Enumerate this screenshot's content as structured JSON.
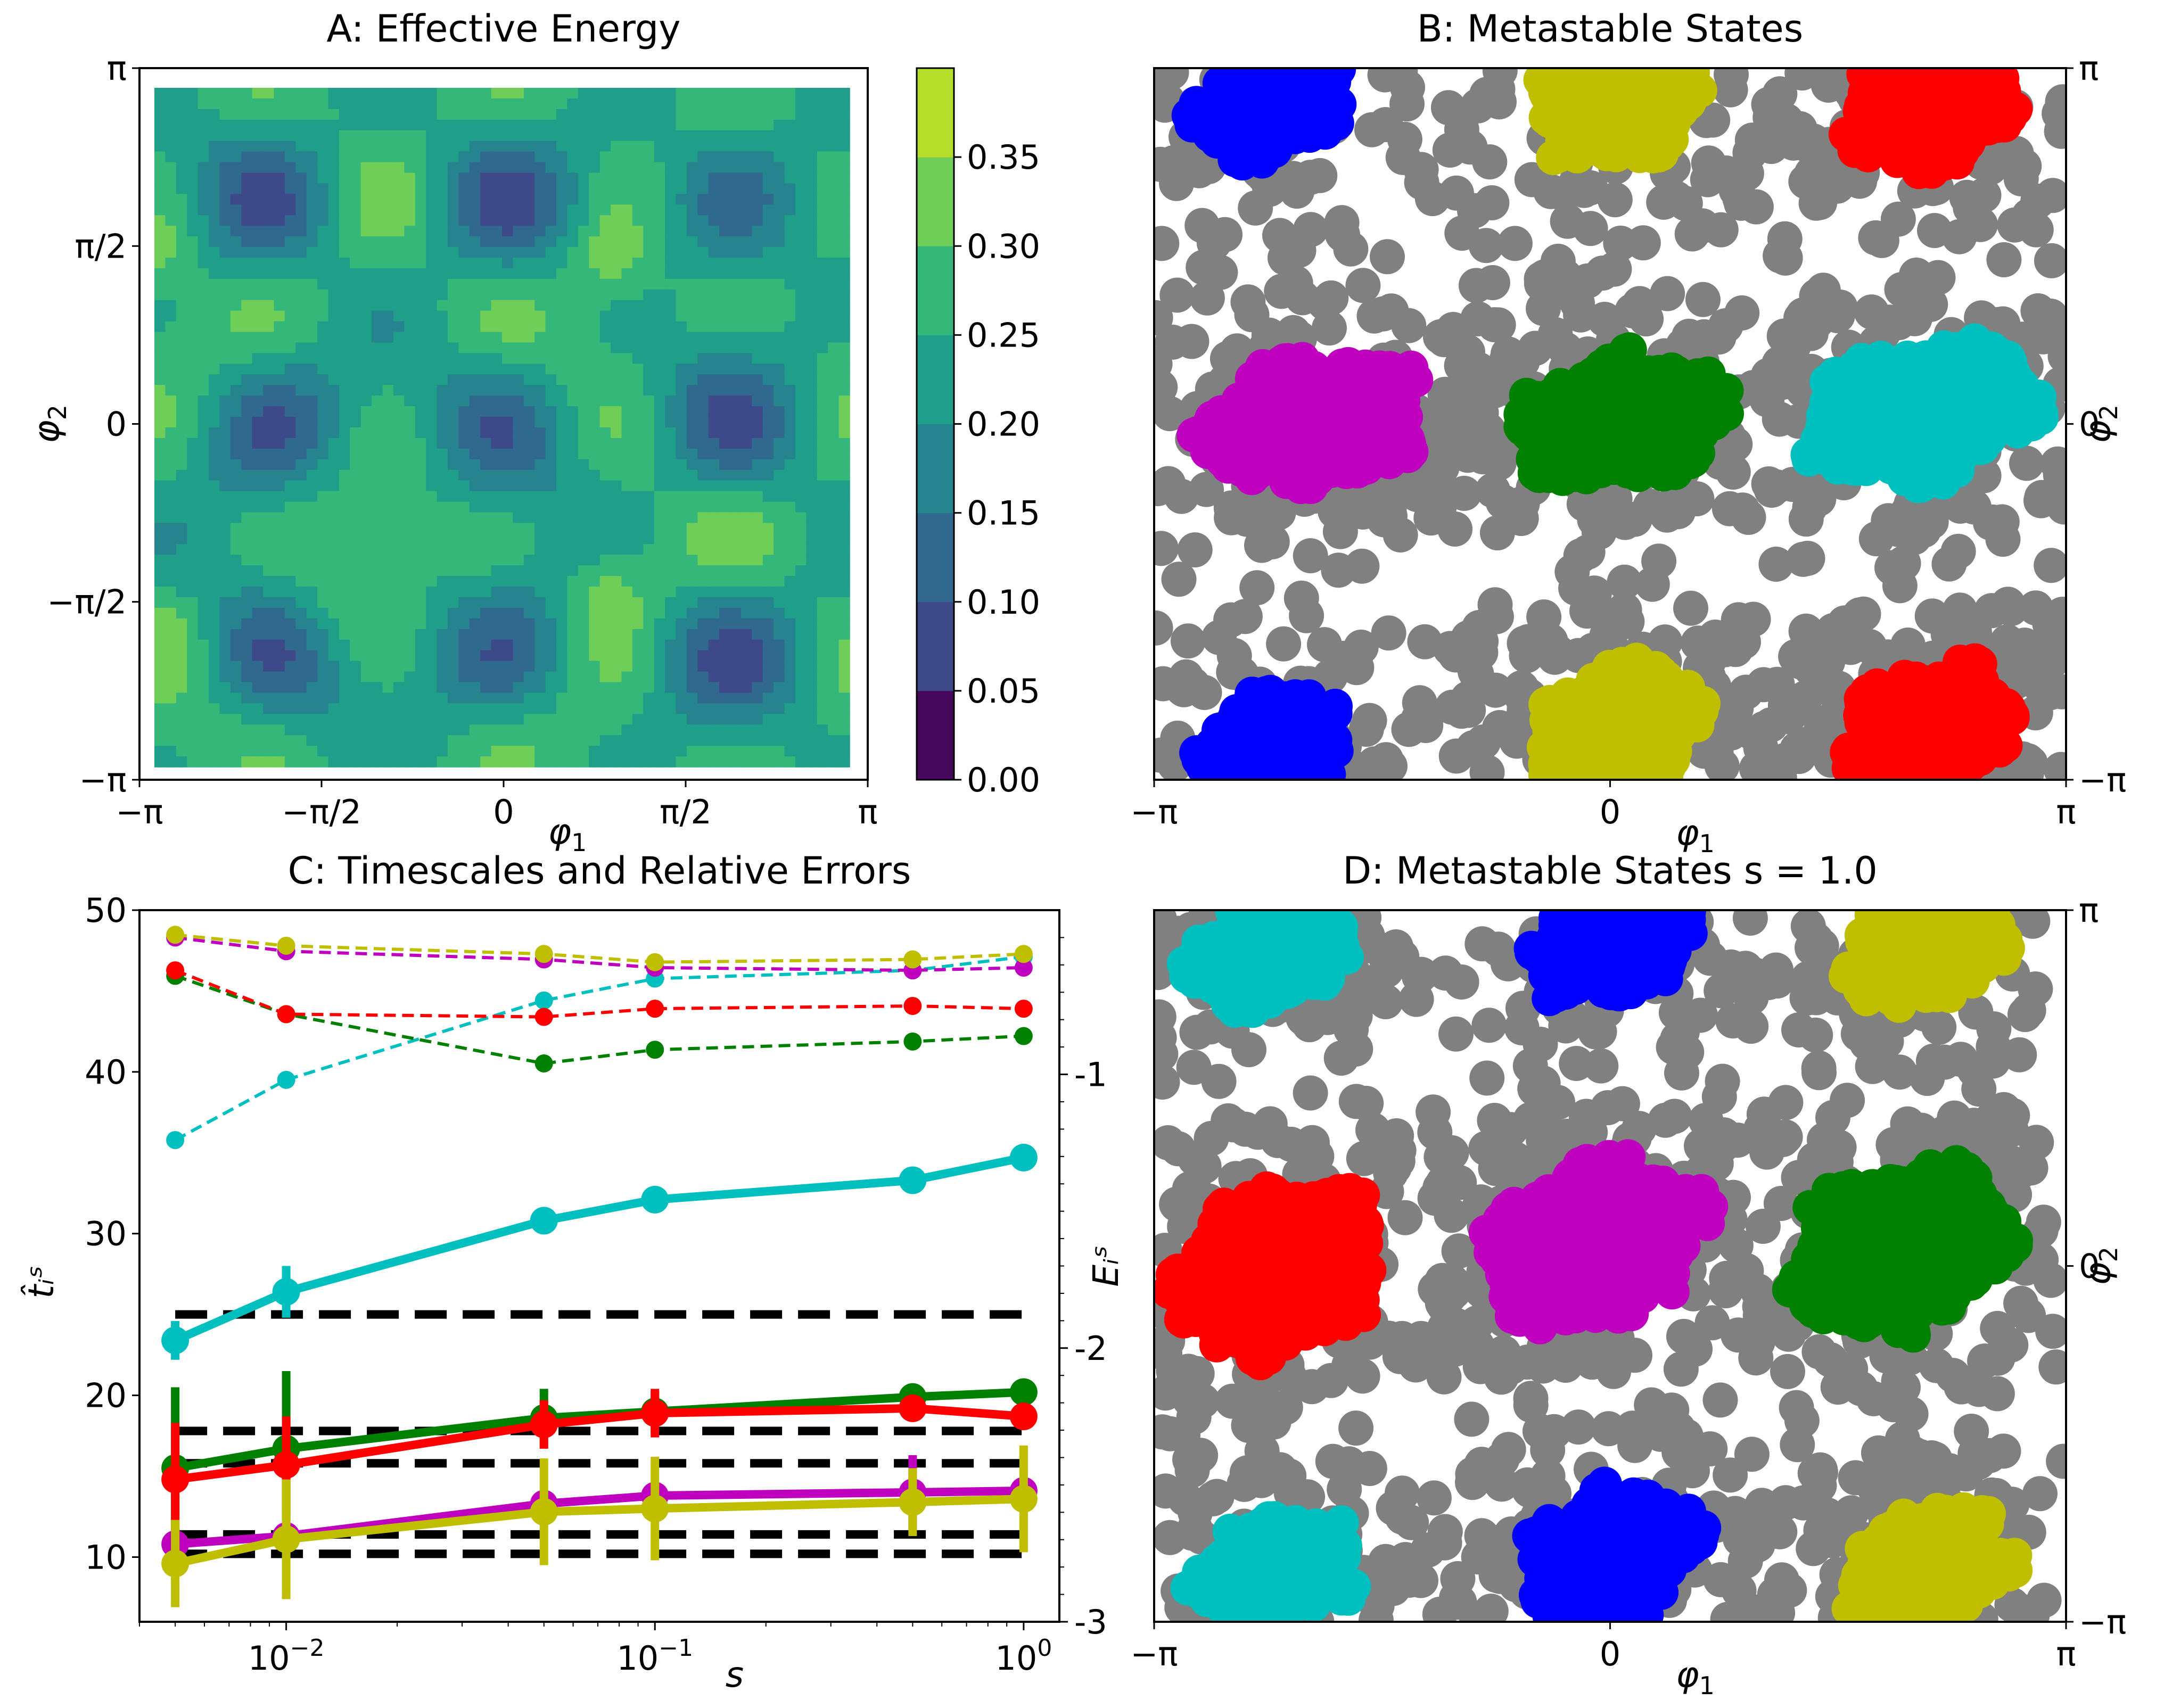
{
  "chart_data": [
    {
      "panel": "A",
      "type": "heatmap",
      "title": "A: Effective Energy",
      "xlabel": "φ1",
      "ylabel": "φ2",
      "xlim": [
        -3.1416,
        3.1416
      ],
      "ylim": [
        -3.1416,
        3.1416
      ],
      "x_ticks": [
        "−π",
        "−π/2",
        "0",
        "π/2",
        "π"
      ],
      "y_ticks": [
        "−π",
        "−π/2",
        "0",
        "π/2",
        "π"
      ],
      "colorbar": {
        "levels": [
          0.0,
          0.05,
          0.1,
          0.15,
          0.2,
          0.25,
          0.3,
          0.35
        ],
        "tick_labels": [
          "0.00",
          "0.05",
          "0.10",
          "0.15",
          "0.20",
          "0.25",
          "0.30",
          "0.35"
        ],
        "colors": [
          "#46085c",
          "#3e4989",
          "#30688e",
          "#25848e",
          "#1f9e89",
          "#35b779",
          "#6ece58",
          "#b5de2b"
        ]
      }
    },
    {
      "panel": "B",
      "type": "scatter",
      "title": "B: Metastable States",
      "xlabel": "φ1",
      "ylabel": "φ2",
      "xlim": [
        -3.1416,
        3.1416
      ],
      "ylim": [
        -3.1416,
        3.1416
      ],
      "x_ticks": [
        "−π",
        "0",
        "π"
      ],
      "y_ticks": [
        "−π",
        "0",
        "π"
      ],
      "background_points_color": "#808080",
      "clusters": [
        {
          "color": "#0000ff",
          "x": -2.35,
          "y": 2.85,
          "rx": 0.55,
          "ry": 0.55
        },
        {
          "color": "#0000ff",
          "x": -2.35,
          "y": -2.85,
          "rx": 0.55,
          "ry": 0.55
        },
        {
          "color": "#bfbf00",
          "x": 0.05,
          "y": 2.85,
          "rx": 0.6,
          "ry": 0.6
        },
        {
          "color": "#bfbf00",
          "x": 0.05,
          "y": -2.7,
          "rx": 0.62,
          "ry": 0.62
        },
        {
          "color": "#ff0000",
          "x": 2.2,
          "y": 2.8,
          "rx": 0.62,
          "ry": 0.62
        },
        {
          "color": "#ff0000",
          "x": 2.2,
          "y": -2.7,
          "rx": 0.62,
          "ry": 0.62
        },
        {
          "color": "#bf00bf",
          "x": -2.05,
          "y": 0.0,
          "rx": 0.8,
          "ry": 0.65
        },
        {
          "color": "#008000",
          "x": 0.1,
          "y": 0.05,
          "rx": 0.8,
          "ry": 0.6
        },
        {
          "color": "#00bfbf",
          "x": 2.15,
          "y": 0.1,
          "rx": 0.85,
          "ry": 0.65
        }
      ]
    },
    {
      "panel": "C",
      "type": "line",
      "title": "C: Timescales and Relative Errors",
      "xlabel": "s",
      "ylabel": "t̂ᵢˢ",
      "ylabel2": "Eᵢˢ",
      "xscale": "log",
      "xlim": [
        0.004,
        1.25
      ],
      "ylim": [
        6,
        50
      ],
      "y2lim": [
        -3,
        -0.4
      ],
      "x": [
        0.005,
        0.01,
        0.05,
        0.1,
        0.5,
        1.0
      ],
      "x_ticks": [
        "10−2",
        "10−1",
        "100"
      ],
      "y_ticks": [
        "10",
        "20",
        "30",
        "40",
        "50"
      ],
      "y2_ticks": [
        "-1",
        "-2",
        "-3"
      ],
      "reference_lines": [
        25.0,
        17.8,
        15.8,
        11.4,
        10.2
      ],
      "series": [
        {
          "name": "cyan",
          "color": "#00bfbf",
          "values": [
            23.4,
            26.4,
            30.8,
            32.1,
            33.3,
            34.7
          ],
          "errors": [
            1.2,
            1.6,
            0.6,
            0.5,
            0.5,
            0.5
          ],
          "relative_errors": [
            -1.24,
            -1.02,
            -0.73,
            -0.65,
            -0.62,
            -0.57
          ]
        },
        {
          "name": "green",
          "color": "#008000",
          "values": [
            15.5,
            16.7,
            18.6,
            19.0,
            19.9,
            20.2
          ],
          "errors": [
            5.0,
            4.8,
            1.8,
            1.3,
            0.8,
            0.6
          ],
          "relative_errors": [
            -0.64,
            -0.78,
            -0.96,
            -0.91,
            -0.88,
            -0.86
          ]
        },
        {
          "name": "red",
          "color": "#ff0000",
          "values": [
            14.8,
            15.7,
            18.2,
            18.9,
            19.2,
            18.7
          ],
          "errors": [
            3.5,
            3.0,
            1.5,
            1.5,
            0.8,
            0.5
          ],
          "relative_errors": [
            -0.62,
            -0.78,
            -0.79,
            -0.76,
            -0.75,
            -0.76
          ]
        },
        {
          "name": "magenta",
          "color": "#bf00bf",
          "values": [
            10.8,
            11.3,
            13.3,
            13.8,
            14.0,
            14.1
          ],
          "errors": [
            0.4,
            0.6,
            0.6,
            0.5,
            2.3,
            0.5
          ],
          "relative_errors": [
            -0.5,
            -0.55,
            -0.58,
            -0.61,
            -0.62,
            -0.61
          ]
        },
        {
          "name": "yellow",
          "color": "#bfbf00",
          "values": [
            9.6,
            11.1,
            12.8,
            13.0,
            13.4,
            13.6
          ],
          "errors": [
            2.7,
            3.7,
            3.3,
            3.2,
            2.1,
            3.3
          ],
          "relative_errors": [
            -0.49,
            -0.53,
            -0.56,
            -0.59,
            -0.58,
            -0.56
          ]
        }
      ]
    },
    {
      "panel": "D",
      "type": "scatter",
      "title": "D: Metastable States s = 1.0",
      "xlabel": "φ1",
      "ylabel": "φ2",
      "xlim": [
        -3.1416,
        3.1416
      ],
      "ylim": [
        -3.1416,
        3.1416
      ],
      "x_ticks": [
        "−π",
        "0",
        "π"
      ],
      "y_ticks": [
        "−π",
        "0",
        "π"
      ],
      "background_points_color": "#808080",
      "clusters": [
        {
          "color": "#00bfbf",
          "x": -2.35,
          "y": 2.8,
          "rx": 0.6,
          "ry": 0.55
        },
        {
          "color": "#00bfbf",
          "x": -2.3,
          "y": -2.7,
          "rx": 0.6,
          "ry": 0.55
        },
        {
          "color": "#0000ff",
          "x": 0.0,
          "y": 2.85,
          "rx": 0.6,
          "ry": 0.55
        },
        {
          "color": "#0000ff",
          "x": 0.0,
          "y": -2.55,
          "rx": 0.65,
          "ry": 0.65
        },
        {
          "color": "#bfbf00",
          "x": 2.2,
          "y": 2.8,
          "rx": 0.6,
          "ry": 0.6
        },
        {
          "color": "#bfbf00",
          "x": 2.2,
          "y": -2.65,
          "rx": 0.6,
          "ry": 0.6
        },
        {
          "color": "#ff0000",
          "x": -2.3,
          "y": -0.05,
          "rx": 0.75,
          "ry": 0.85
        },
        {
          "color": "#bf00bf",
          "x": -0.1,
          "y": 0.2,
          "rx": 0.8,
          "ry": 0.8
        },
        {
          "color": "#008000",
          "x": 2.0,
          "y": 0.15,
          "rx": 0.8,
          "ry": 0.8
        }
      ]
    }
  ]
}
